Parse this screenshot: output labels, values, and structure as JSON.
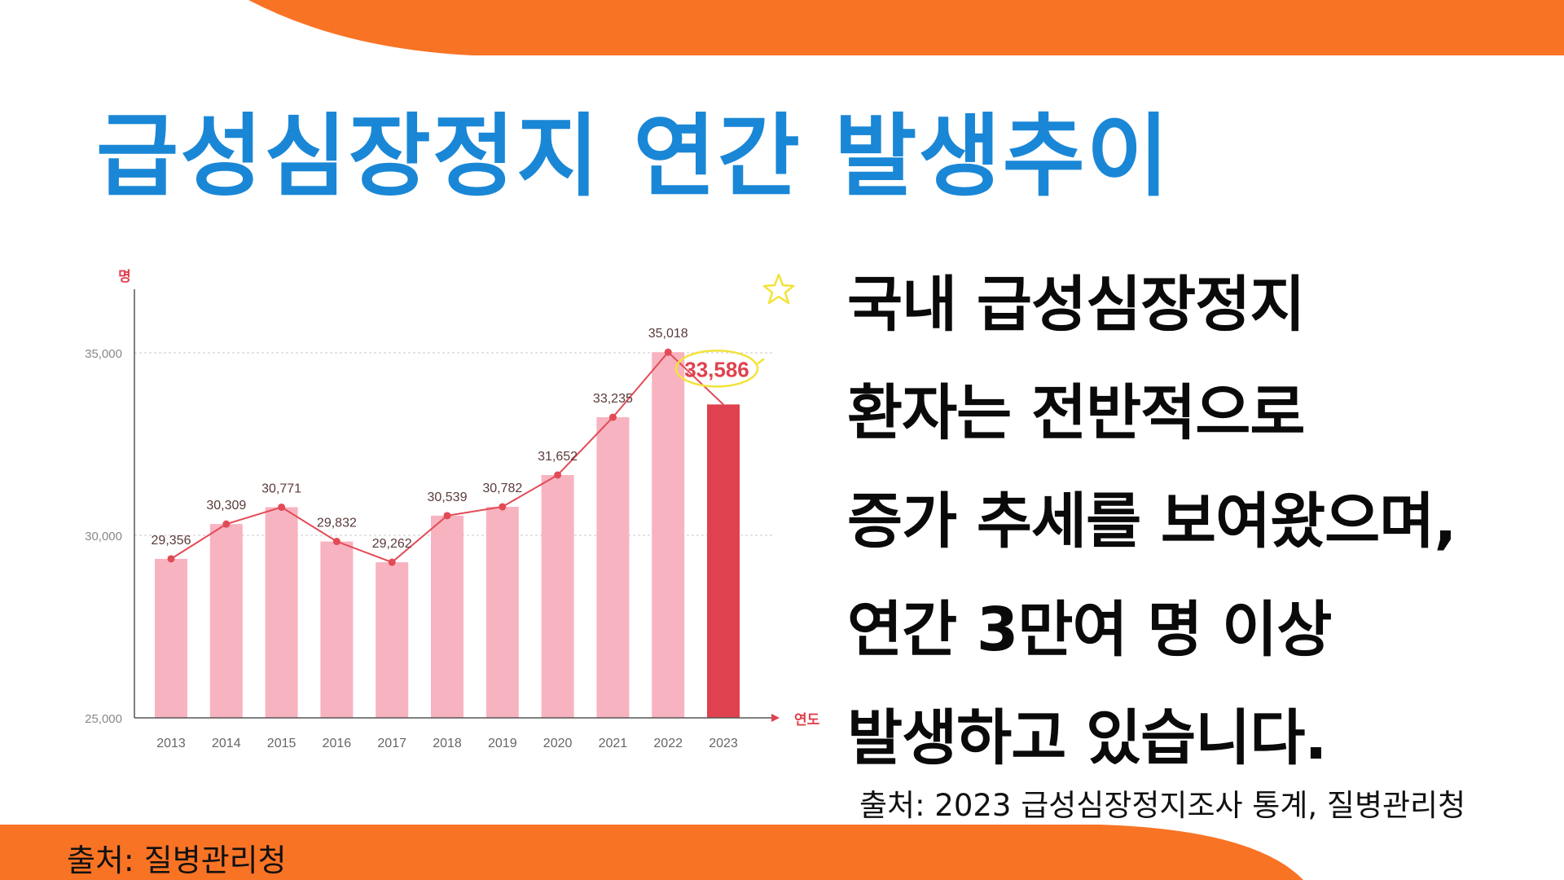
{
  "title": "급성심장정지 연간 발생추이",
  "description_lines": [
    "국내 급성심장정지",
    "환자는 전반적으로",
    "증가 추세를 보여왔으며,",
    "연간 3만여 명 이상",
    "발생하고 있습니다."
  ],
  "source_right": "출처: 2023 급성심장정지조사 통계, 질병관리청",
  "source_left": "출처: 질병관리청",
  "colors": {
    "orange": "#f97325",
    "title_blue": "#1a87d6",
    "bar_pink": "#f8b3c0",
    "bar_highlight": "#e0414f",
    "line_red": "#e24b56",
    "highlight_circle": "#f2e33a"
  },
  "chart_data": {
    "type": "bar",
    "categories": [
      "2013",
      "2014",
      "2015",
      "2016",
      "2017",
      "2018",
      "2019",
      "2020",
      "2021",
      "2022",
      "2023"
    ],
    "values": [
      29356,
      30309,
      30771,
      29832,
      29262,
      30539,
      30782,
      31652,
      33235,
      35018,
      33586
    ],
    "value_labels": [
      "29,356",
      "30,309",
      "30,771",
      "29,832",
      "29,262",
      "30,539",
      "30,782",
      "31,652",
      "33,235",
      "35,018",
      "33,586"
    ],
    "overlay": "line",
    "highlight_index": 10,
    "ylim": [
      25000,
      35000
    ],
    "yticks": [
      25000,
      30000,
      35000
    ],
    "ytick_labels": [
      "25,000",
      "30,000",
      "35,000"
    ],
    "ylabel": "명",
    "xlabel": "연도",
    "grid": "dashed horizontal at 30,000 and 35,000"
  }
}
